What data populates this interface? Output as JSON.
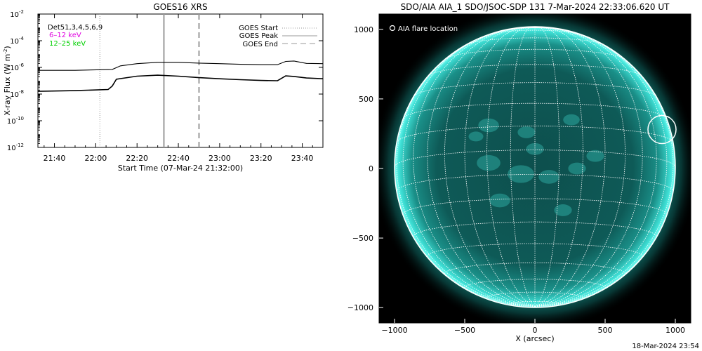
{
  "chart_data": [
    {
      "type": "line",
      "title": "GOES16 XRS",
      "xlabel": "Start Time (07-Mar-24 21:32:00)",
      "ylabel": "X-ray Flux (W m^-2)",
      "yscale": "log",
      "ylim": [
        1e-12,
        0.01
      ],
      "xlim": [
        "21:32",
        "23:50"
      ],
      "x_tick_labels": [
        "21:40",
        "22:00",
        "22:20",
        "22:40",
        "23:00",
        "23:20",
        "23:40"
      ],
      "y_tick_labels": [
        {
          "base": "10",
          "exp": "-2"
        },
        {
          "base": "10",
          "exp": "-4"
        },
        {
          "base": "10",
          "exp": "-6"
        },
        {
          "base": "10",
          "exp": "-8"
        },
        {
          "base": "10",
          "exp": "-10"
        },
        {
          "base": "10",
          "exp": "-12"
        }
      ],
      "annotations": [
        "Det51,3,4,5,6,9"
      ],
      "energy_labels": [
        {
          "text": "6–12 keV",
          "color": "#e000e0"
        },
        {
          "text": "12–25 keV",
          "color": "#00d000"
        }
      ],
      "legend": [
        {
          "label": "GOES Start",
          "style": "dotted",
          "color": "#9a9a9a"
        },
        {
          "label": "GOES Peak",
          "style": "solid",
          "color": "#9a9a9a"
        },
        {
          "label": "GOES End",
          "style": "dashed",
          "color": "#9a9a9a"
        }
      ],
      "markers": {
        "start": "22:02",
        "peak": "22:33",
        "end": "22:50"
      },
      "series": [
        {
          "x": [
            "21:32",
            "21:50",
            "22:08",
            "22:12",
            "22:20",
            "22:30",
            "22:40",
            "22:50",
            "23:00",
            "23:10",
            "23:20",
            "23:28",
            "23:32",
            "23:36",
            "23:42",
            "23:50"
          ],
          "values": [
            6e-07,
            6e-07,
            7e-07,
            1.3e-06,
            1.9e-06,
            2.4e-06,
            2.4e-06,
            2.1e-06,
            1.9e-06,
            1.7e-06,
            1.6e-06,
            1.6e-06,
            2.8e-06,
            3e-06,
            2e-06,
            1.9e-06
          ]
        },
        {
          "x": [
            "21:32",
            "21:50",
            "22:06",
            "22:08",
            "22:10",
            "22:20",
            "22:30",
            "22:40",
            "22:50",
            "23:00",
            "23:10",
            "23:20",
            "23:28",
            "23:32",
            "23:36",
            "23:42",
            "23:50"
          ],
          "values": [
            1.6e-08,
            1.8e-08,
            2.2e-08,
            4e-08,
            1.3e-07,
            2.2e-07,
            2.6e-07,
            2.2e-07,
            1.7e-07,
            1.4e-07,
            1.2e-07,
            1.05e-07,
            1e-07,
            2.3e-07,
            2.1e-07,
            1.6e-07,
            1.4e-07
          ]
        }
      ]
    },
    {
      "type": "heatmap",
      "title": "SDO/AIA AIA_1 SDO/JSOC-SDP 131  7-Mar-2024 22:33:06.620 UT",
      "xlabel": "X (arcsec)",
      "ylabel": "",
      "xlim": [
        -1110,
        1110
      ],
      "ylim": [
        -1110,
        1110
      ],
      "x_tick_labels": [
        "−1000",
        "−500",
        "0",
        "500",
        "1000"
      ],
      "y_tick_labels": [
        "1000",
        "500",
        "0",
        "−500",
        "−1000"
      ],
      "legend": [
        {
          "label": "AIA flare location",
          "marker": "circle"
        }
      ],
      "flare_location_arcsec": {
        "x": 905,
        "y": 280
      },
      "color": "#22c8c0"
    }
  ],
  "footer_timestamp": "18-Mar-2024 23:54"
}
